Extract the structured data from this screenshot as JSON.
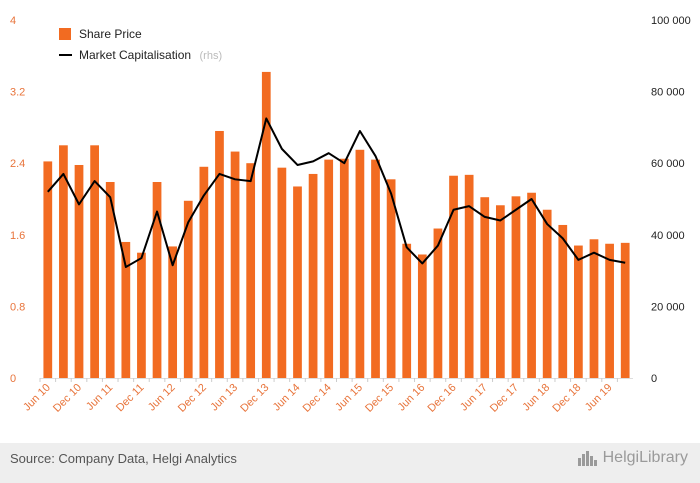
{
  "chart_data": {
    "type": "bar",
    "categories": [
      "Jun 10",
      "Sep 10",
      "Dec 10",
      "Mar 11",
      "Jun 11",
      "Sep 11",
      "Dec 11",
      "Mar 12",
      "Jun 12",
      "Sep 12",
      "Dec 12",
      "Mar 13",
      "Jun 13",
      "Sep 13",
      "Dec 13",
      "Mar 14",
      "Jun 14",
      "Sep 14",
      "Dec 14",
      "Mar 15",
      "Jun 15",
      "Sep 15",
      "Dec 15",
      "Mar 16",
      "Jun 16",
      "Sep 16",
      "Dec 16",
      "Mar 17",
      "Jun 17",
      "Sep 17",
      "Dec 17",
      "Mar 18",
      "Jun 18",
      "Sep 18",
      "Dec 18",
      "Mar 19",
      "Jun 19",
      "Sep 19"
    ],
    "x_tick_labels": [
      "Jun 10",
      "Dec 10",
      "Jun 11",
      "Dec 11",
      "Jun 12",
      "Dec 12",
      "Jun 13",
      "Dec 13",
      "Jun 14",
      "Dec 14",
      "Jun 15",
      "Dec 15",
      "Jun 16",
      "Dec 16",
      "Jun 17",
      "Dec 17",
      "Jun 18",
      "Dec 18",
      "Jun 19"
    ],
    "series": [
      {
        "name": "Share Price",
        "type": "bar",
        "axis": "left",
        "color": "#f26b21",
        "values": [
          2.42,
          2.6,
          2.38,
          2.6,
          2.19,
          1.52,
          1.4,
          2.19,
          1.47,
          1.98,
          2.36,
          2.76,
          2.53,
          2.4,
          3.42,
          2.35,
          2.14,
          2.28,
          2.44,
          2.45,
          2.55,
          2.44,
          2.22,
          1.5,
          1.38,
          1.67,
          2.26,
          2.27,
          2.02,
          1.93,
          2.03,
          2.07,
          1.88,
          1.71,
          1.48,
          1.55,
          1.5,
          1.51
        ]
      },
      {
        "name": "Market Capitalisation",
        "name_suffix": "(rhs)",
        "type": "line",
        "axis": "right",
        "color": "#000000",
        "values": [
          52000,
          57000,
          48500,
          55000,
          50500,
          31000,
          33500,
          46500,
          31500,
          43500,
          51000,
          57000,
          55500,
          55000,
          72500,
          64000,
          59500,
          60500,
          62800,
          60000,
          69000,
          62000,
          51500,
          36500,
          32000,
          37000,
          47000,
          48000,
          45000,
          44000,
          47000,
          50000,
          43000,
          39000,
          33000,
          35000,
          33000,
          32200
        ]
      }
    ],
    "left_axis": {
      "ylim": [
        0,
        4
      ],
      "ticks": [
        0,
        0.8,
        1.6,
        2.4,
        3.2,
        4
      ],
      "tick_labels": [
        "0",
        "0.8",
        "1.6",
        "2.4",
        "3.2",
        "4"
      ]
    },
    "right_axis": {
      "ylim": [
        0,
        100000
      ],
      "ticks": [
        0,
        20000,
        40000,
        60000,
        80000,
        100000
      ],
      "tick_labels": [
        "0",
        "20 000",
        "40 000",
        "60 000",
        "80 000",
        "100 000"
      ]
    },
    "legend": {
      "position": "top-left",
      "items": [
        {
          "label": "Share Price",
          "marker": "square",
          "color": "#f26b21"
        },
        {
          "label": "Market Capitalisation",
          "sub": "(rhs)",
          "marker": "line",
          "color": "#000000"
        }
      ]
    },
    "grid": false
  },
  "footer": {
    "source": "Source: Company Data, Helgi Analytics",
    "brand": "HelgiLibrary"
  }
}
